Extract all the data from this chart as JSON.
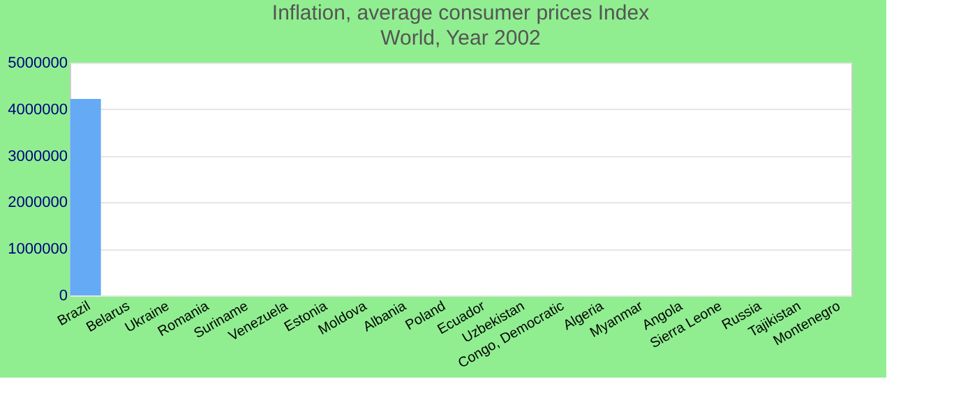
{
  "chart_data": {
    "type": "bar",
    "title": "Inflation, average consumer prices  Index",
    "subtitle": "World, Year 2002",
    "categories": [
      "Brazil",
      "Belarus",
      "Ukraine",
      "Romania",
      "Suriname",
      "Venezuela",
      "Estonia",
      "Moldova",
      "Albania",
      "Poland",
      "Ecuador",
      "Uzbekistan",
      "Congo, Democratic",
      "Algeria",
      "Myanmar",
      "Angola",
      "Sierra Leone",
      "Russia",
      "Tajikistan",
      "Montenegro"
    ],
    "values": [
      4220000,
      0,
      0,
      0,
      0,
      0,
      0,
      0,
      0,
      0,
      0,
      0,
      0,
      0,
      0,
      0,
      0,
      0,
      0,
      0
    ],
    "color": "#64aaf5",
    "ylim": [
      0,
      5000000
    ],
    "yticks": [
      0,
      1000000,
      2000000,
      3000000,
      4000000,
      5000000
    ],
    "grid": "y"
  }
}
